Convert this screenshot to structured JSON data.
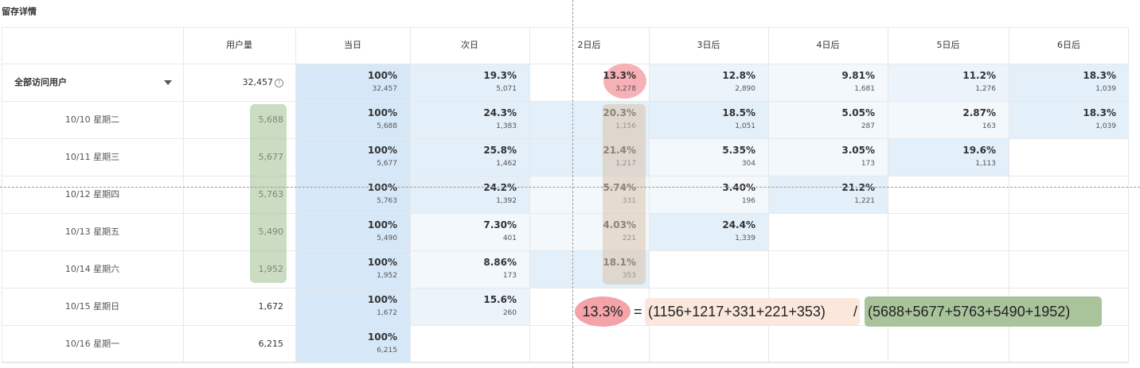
{
  "page_title": "留存详情",
  "table": {
    "headers": [
      "用户量",
      "当日",
      "次日",
      "2日后",
      "3日后",
      "4日后",
      "5日后",
      "6日后"
    ],
    "summary_row": {
      "label": "全部访问用户",
      "users": "32,457",
      "help_icon": "?",
      "cells": [
        {
          "pct": "100%",
          "cnt": "32,457"
        },
        {
          "pct": "19.3%",
          "cnt": "5,071"
        },
        {
          "pct": "13.3%",
          "cnt": "3,278"
        },
        {
          "pct": "12.8%",
          "cnt": "2,890"
        },
        {
          "pct": "9.81%",
          "cnt": "1,681"
        },
        {
          "pct": "11.2%",
          "cnt": "1,276"
        },
        {
          "pct": "18.3%",
          "cnt": "1,039"
        }
      ]
    },
    "rows": [
      {
        "label": "10/10 星期二",
        "users": "5,688",
        "cells": [
          {
            "pct": "100%",
            "cnt": "5,688"
          },
          {
            "pct": "24.3%",
            "cnt": "1,383"
          },
          {
            "pct": "20.3%",
            "cnt": "1,156"
          },
          {
            "pct": "18.5%",
            "cnt": "1,051"
          },
          {
            "pct": "5.05%",
            "cnt": "287"
          },
          {
            "pct": "2.87%",
            "cnt": "163"
          },
          {
            "pct": "18.3%",
            "cnt": "1,039"
          }
        ]
      },
      {
        "label": "10/11 星期三",
        "users": "5,677",
        "cells": [
          {
            "pct": "100%",
            "cnt": "5,677"
          },
          {
            "pct": "25.8%",
            "cnt": "1,462"
          },
          {
            "pct": "21.4%",
            "cnt": "1,217"
          },
          {
            "pct": "5.35%",
            "cnt": "304"
          },
          {
            "pct": "3.05%",
            "cnt": "173"
          },
          {
            "pct": "19.6%",
            "cnt": "1,113"
          }
        ]
      },
      {
        "label": "10/12 星期四",
        "users": "5,763",
        "cells": [
          {
            "pct": "100%",
            "cnt": "5,763"
          },
          {
            "pct": "24.2%",
            "cnt": "1,392"
          },
          {
            "pct": "5.74%",
            "cnt": "331"
          },
          {
            "pct": "3.40%",
            "cnt": "196"
          },
          {
            "pct": "21.2%",
            "cnt": "1,221"
          }
        ]
      },
      {
        "label": "10/13 星期五",
        "users": "5,490",
        "cells": [
          {
            "pct": "100%",
            "cnt": "5,490"
          },
          {
            "pct": "7.30%",
            "cnt": "401"
          },
          {
            "pct": "4.03%",
            "cnt": "221"
          },
          {
            "pct": "24.4%",
            "cnt": "1,339"
          }
        ]
      },
      {
        "label": "10/14 星期六",
        "users": "1,952",
        "cells": [
          {
            "pct": "100%",
            "cnt": "1,952"
          },
          {
            "pct": "8.86%",
            "cnt": "173"
          },
          {
            "pct": "18.1%",
            "cnt": "353"
          }
        ]
      },
      {
        "label": "10/15 星期日",
        "users": "1,672",
        "cells": [
          {
            "pct": "100%",
            "cnt": "1,672"
          },
          {
            "pct": "15.6%",
            "cnt": "260"
          }
        ]
      },
      {
        "label": "10/16 星期一",
        "users": "6,215",
        "cells": [
          {
            "pct": "100%",
            "cnt": "6,215"
          }
        ]
      }
    ]
  },
  "formula": {
    "result": "13.3%",
    "equals": "=",
    "numerator": "(1156+1217+331+221+353)",
    "slash": "/",
    "denominator": "(5688+5677+5763+5490+1952)"
  },
  "colors": {
    "day0_bg": "#d6e8f7",
    "tint_strong": "#e3eff9",
    "tint_mid": "#ebf3fb",
    "tint_light": "#f3f8fc",
    "highlight_green": "#a9c49a",
    "highlight_tan": "#d9c2ad",
    "highlight_pink": "#f4a3a9",
    "highlight_peach": "#fbe8dd"
  }
}
